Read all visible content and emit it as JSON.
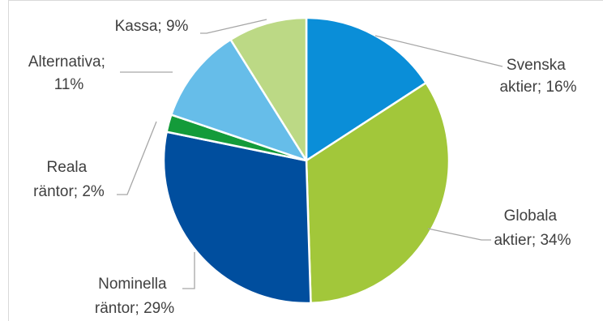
{
  "chart_data": {
    "type": "pie",
    "title": "",
    "colors": {
      "svenska": "#0a8ed8",
      "globala": "#a2c73a",
      "nominella": "#004e9e",
      "reala": "#149b3a",
      "alternativa": "#66bde9",
      "kassa": "#bcd985"
    },
    "slices": [
      {
        "key": "svenska",
        "name": "Svenska aktier",
        "value": 16,
        "label_lines": [
          "Svenska",
          "aktier; 16%"
        ]
      },
      {
        "key": "globala",
        "name": "Globala aktier",
        "value": 34,
        "label_lines": [
          "Globala",
          "aktier; 34%"
        ]
      },
      {
        "key": "nominella",
        "name": "Nominella räntor",
        "value": 29,
        "label_lines": [
          "Nominella",
          "räntor; 29%"
        ]
      },
      {
        "key": "reala",
        "name": "Reala räntor",
        "value": 2,
        "label_lines": [
          "Reala",
          "räntor; 2%"
        ]
      },
      {
        "key": "alternativa",
        "name": "Alternativa",
        "value": 11,
        "label_lines": [
          "Alternativa;",
          "11%"
        ]
      },
      {
        "key": "kassa",
        "name": "Kassa",
        "value": 9,
        "label_lines": [
          "Kassa; 9%"
        ]
      }
    ],
    "legend": "none",
    "data_labels": "outside-with-leader-lines"
  }
}
